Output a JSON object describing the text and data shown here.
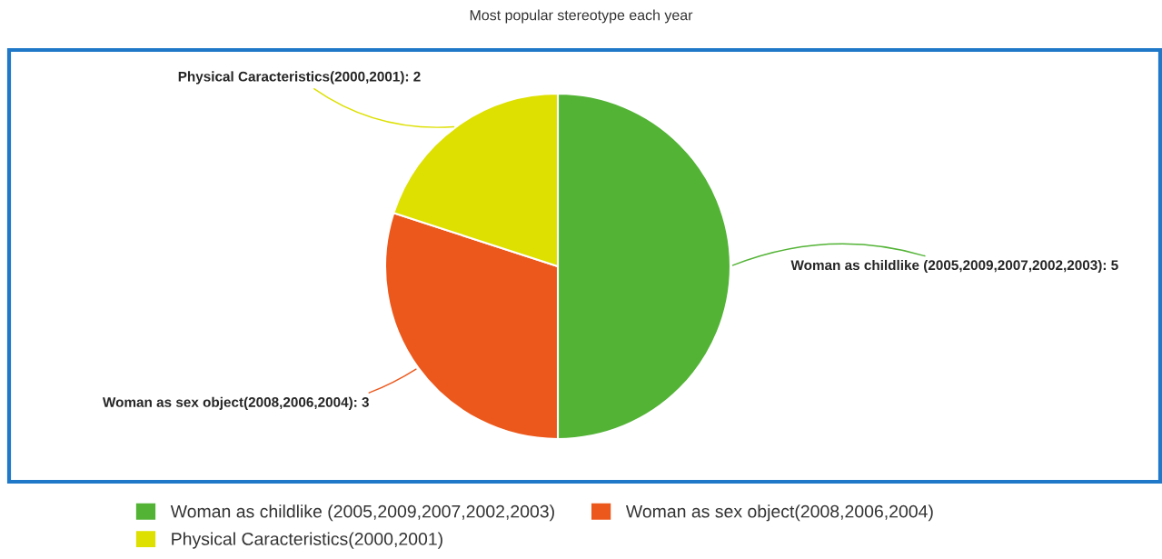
{
  "chart_data": {
    "type": "pie",
    "title": "Most popular stereotype each year",
    "categories": [
      "Woman as childlike (2005,2009,2007,2002,2003)",
      "Woman as sex object(2008,2006,2004)",
      "Physical Caracteristics(2000,2001)"
    ],
    "values": [
      5,
      3,
      2
    ],
    "colors": [
      "#52b335",
      "#ec581c",
      "#dde000"
    ],
    "value_labels": [
      "Woman as childlike (2005,2009,2007,2002,2003): 5",
      "Woman as sex object(2008,2006,2004): 3",
      "Physical Caracteristics(2000,2001): 2"
    ],
    "legend": "bottom"
  }
}
